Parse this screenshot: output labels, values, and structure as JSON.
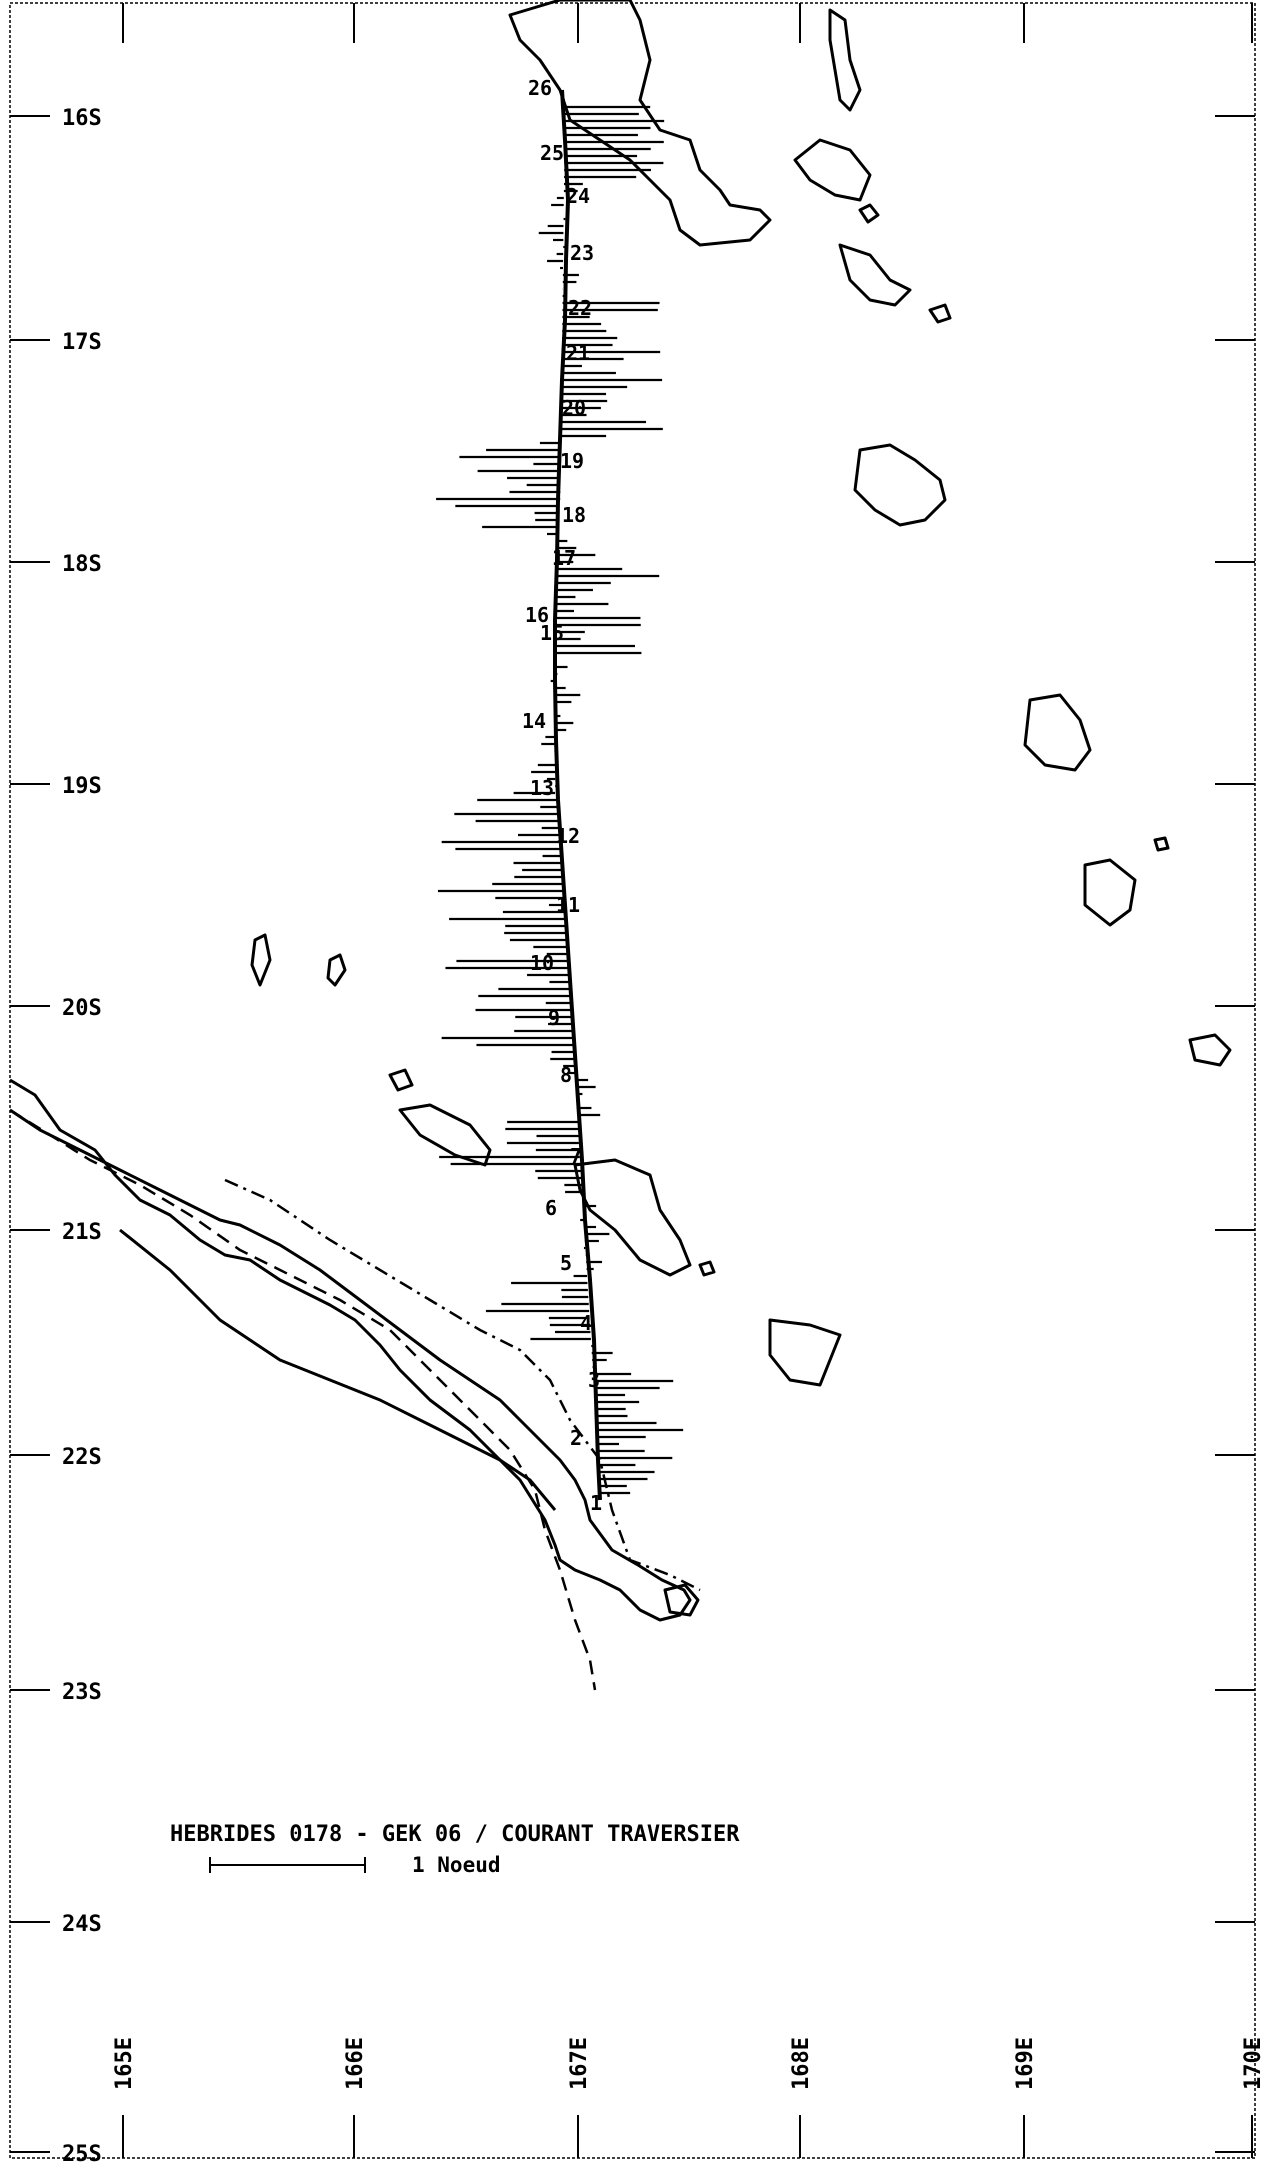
{
  "title": "HEBRIDES 0178 - GEK 06 / COURANT TRAVERSIER",
  "scale_label": "1 Noeud",
  "lat_labels": [
    "16S",
    "17S",
    "18S",
    "19S",
    "20S",
    "21S",
    "22S",
    "23S",
    "24S",
    "25S"
  ],
  "lon_labels": [
    "165E",
    "166E",
    "167E",
    "168E",
    "169E",
    "170E"
  ],
  "station_labels": [
    "26",
    "25",
    "24",
    "23",
    "22",
    "21",
    "20",
    "19",
    "18",
    "17",
    "16",
    "15",
    "14",
    "13",
    "12",
    "11",
    "10",
    "9",
    "8",
    "7",
    "6",
    "5",
    "4",
    "3",
    "2",
    "1"
  ],
  "colors": {
    "ink": "#000000",
    "background": "#ffffff"
  }
}
